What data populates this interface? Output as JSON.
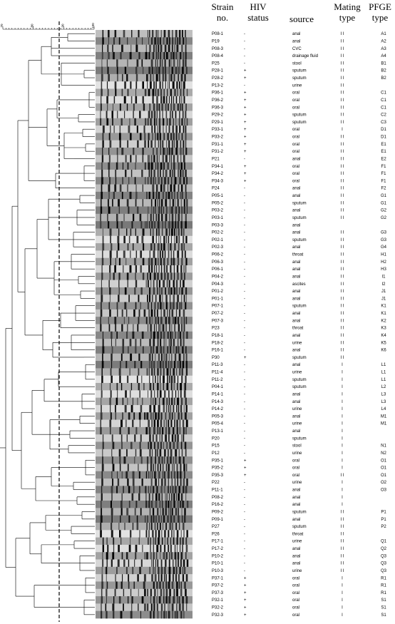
{
  "headers": {
    "strain": [
      "Strain",
      "no."
    ],
    "hiv": [
      "HIV",
      "status"
    ],
    "source": "source",
    "mating": [
      "Mating",
      "type"
    ],
    "pfge": [
      "PFGE",
      "type"
    ]
  },
  "scale_ticks": [
    "70",
    "80",
    "90",
    "100"
  ],
  "rows": [
    [
      "P08-1",
      "-",
      "anal",
      "I I",
      "A1"
    ],
    [
      "P19",
      "-",
      "anal",
      "I I",
      "A2"
    ],
    [
      "P08-3",
      "-",
      "CVC",
      "I I",
      "A3"
    ],
    [
      "P08-4",
      "-",
      "drainage fluid",
      "I I",
      "A4"
    ],
    [
      "P25",
      "-",
      "stool",
      "I I",
      "B1"
    ],
    [
      "P28-1",
      "+",
      "sputum",
      "I I",
      "B2"
    ],
    [
      "P28-2",
      "+",
      "sputum",
      "I I",
      "B2"
    ],
    [
      "P13-2",
      "-",
      "urine",
      "I I",
      ""
    ],
    [
      "P36-1",
      "+",
      "oral",
      "I I",
      "C1"
    ],
    [
      "P36-2",
      "+",
      "oral",
      "I I",
      "C1"
    ],
    [
      "P36-3",
      "+",
      "oral",
      "I I",
      "C1"
    ],
    [
      "P29-2",
      "+",
      "sputum",
      "I I",
      "C2"
    ],
    [
      "P29-1",
      "+",
      "sputum",
      "I I",
      "C3"
    ],
    [
      "P33-1",
      "+",
      "oral",
      "I",
      "D1"
    ],
    [
      "P33-2",
      "+",
      "oral",
      "I I",
      "D1"
    ],
    [
      "P31-1",
      "+",
      "oral",
      "I I",
      "E1"
    ],
    [
      "P31-2",
      "+",
      "oral",
      "I I",
      "E1"
    ],
    [
      "P21",
      "-",
      "anal",
      "I I",
      "E2"
    ],
    [
      "P34-1",
      "+",
      "oral",
      "I I",
      "F1"
    ],
    [
      "P34-2",
      "+",
      "oral",
      "I I",
      "F1"
    ],
    [
      "P34-3",
      "+",
      "oral",
      "I I",
      "F1"
    ],
    [
      "P24",
      "-",
      "anal",
      "I I",
      "F2"
    ],
    [
      "P05-1",
      "-",
      "anal",
      "I I",
      "G1"
    ],
    [
      "P05-2",
      "-",
      "sputum",
      "I I",
      "G1"
    ],
    [
      "P03-2",
      "-",
      "anal",
      "I I",
      "G2"
    ],
    [
      "P03-1",
      "-",
      "sputum",
      "I I",
      "G2"
    ],
    [
      "P03-3",
      "-",
      "anal",
      "",
      ""
    ],
    [
      "P02-2",
      "-",
      "anal",
      "I I",
      "G3"
    ],
    [
      "P02-1",
      "-",
      "sputum",
      "I I",
      "G3"
    ],
    [
      "P02-3",
      "-",
      "anal",
      "I I",
      "G4"
    ],
    [
      "P06-2",
      "-",
      "throat",
      "I I",
      "H1"
    ],
    [
      "P06-3",
      "-",
      "anal",
      "I I",
      "H2"
    ],
    [
      "P06-1",
      "-",
      "anal",
      "I I",
      "H3"
    ],
    [
      "P04-2",
      "-",
      "anal",
      "I I",
      "I1"
    ],
    [
      "P04-3",
      "-",
      "ascites",
      "I I",
      "I2"
    ],
    [
      "P01-2",
      "-",
      "anal",
      "I I",
      "J1"
    ],
    [
      "P01-1",
      "-",
      "anal",
      "I I",
      "J1"
    ],
    [
      "P07-1",
      "-",
      "sputum",
      "I I",
      "K1"
    ],
    [
      "P07-2",
      "-",
      "anal",
      "I I",
      "K1"
    ],
    [
      "P07-3",
      "-",
      "anal",
      "I I",
      "K2"
    ],
    [
      "P23",
      "-",
      "throat",
      "I I",
      "K3"
    ],
    [
      "P18-1",
      "-",
      "anal",
      "I I",
      "K4"
    ],
    [
      "P18-2",
      "-",
      "urine",
      "I I",
      "K5"
    ],
    [
      "P16-1",
      "-",
      "anal",
      "I I",
      "K6"
    ],
    [
      "P30",
      "+",
      "sputum",
      "I I",
      ""
    ],
    [
      "P11-3",
      "-",
      "anal",
      "I",
      "L1"
    ],
    [
      "P11-4",
      "-",
      "urine",
      "I",
      "L1"
    ],
    [
      "P11-2",
      "-",
      "sputum",
      "I",
      "L1"
    ],
    [
      "P04-1",
      "-",
      "sputum",
      "I",
      "L2"
    ],
    [
      "P14-1",
      "-",
      "anal",
      "I",
      "L3"
    ],
    [
      "P14-3",
      "-",
      "anal",
      "I",
      "L3"
    ],
    [
      "P14-2",
      "-",
      "urine",
      "I",
      "L4"
    ],
    [
      "P05-3",
      "-",
      "anal",
      "I",
      "M1"
    ],
    [
      "P05-4",
      "-",
      "urine",
      "I",
      "M1"
    ],
    [
      "P13-1",
      "-",
      "anal",
      "I",
      ""
    ],
    [
      "P20",
      "-",
      "sputum",
      "I",
      ""
    ],
    [
      "P15",
      "-",
      "stool",
      "I",
      "N1"
    ],
    [
      "P12",
      "-",
      "urine",
      "I",
      "N2"
    ],
    [
      "P35-1",
      "+",
      "oral",
      "I",
      "O1"
    ],
    [
      "P35-2",
      "+",
      "oral",
      "I",
      "O1"
    ],
    [
      "P35-3",
      "+",
      "oral",
      "I I",
      "O1"
    ],
    [
      "P22",
      "-",
      "urine",
      "I",
      "O2"
    ],
    [
      "P11-1",
      "-",
      "anal",
      "I",
      "O3"
    ],
    [
      "P08-2",
      "-",
      "anal",
      "I",
      ""
    ],
    [
      "P16-2",
      "-",
      "anal",
      "I",
      ""
    ],
    [
      "P09-2",
      "-",
      "sputum",
      "I I",
      "P1"
    ],
    [
      "P09-1",
      "-",
      "anal",
      "I I",
      "P1"
    ],
    [
      "P27",
      "-",
      "sputum",
      "I I",
      "P2"
    ],
    [
      "P26",
      "-",
      "throat",
      "I I",
      ""
    ],
    [
      "P17-1",
      "-",
      "urine",
      "I I",
      "Q1"
    ],
    [
      "P17-2",
      "-",
      "anal",
      "I I",
      "Q2"
    ],
    [
      "P10-2",
      "-",
      "anal",
      "I I",
      "Q3"
    ],
    [
      "P10-1",
      "-",
      "anal",
      "I I",
      "Q3"
    ],
    [
      "P10-3",
      "-",
      "urine",
      "I I",
      "Q3"
    ],
    [
      "P37-1",
      "+",
      "oral",
      "I",
      "R1"
    ],
    [
      "P37-2",
      "+",
      "oral",
      "I",
      "R1"
    ],
    [
      "P37-3",
      "+",
      "oral",
      "I",
      "R1"
    ],
    [
      "P32-1",
      "+",
      "oral",
      "I",
      "S1"
    ],
    [
      "P32-2",
      "+",
      "oral",
      "I",
      "S1"
    ],
    [
      "P32-3",
      "+",
      "oral",
      "I",
      "S1"
    ]
  ]
}
